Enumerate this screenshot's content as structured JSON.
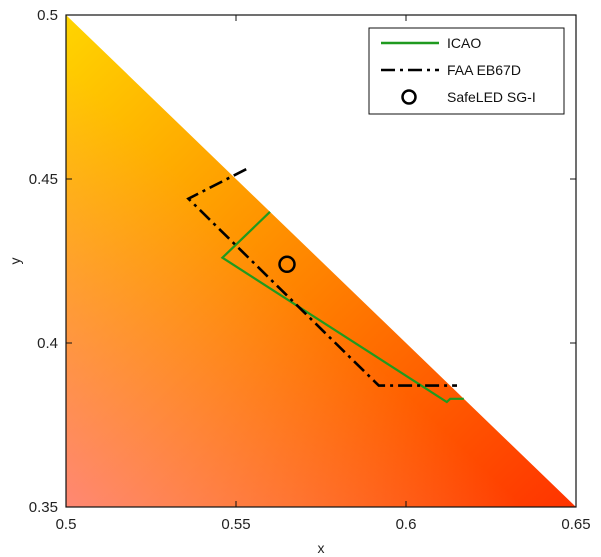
{
  "chart_data": {
    "type": "line",
    "title": "",
    "xlabel": "x",
    "ylabel": "y",
    "xlim": [
      0.5,
      0.65
    ],
    "ylim": [
      0.35,
      0.5
    ],
    "xticks": [
      0.5,
      0.55,
      0.6,
      0.65
    ],
    "yticks": [
      0.35,
      0.4,
      0.45,
      0.5
    ],
    "xtick_labels": [
      "0.5",
      "0.55",
      "0.6",
      "0.65"
    ],
    "ytick_labels": [
      "0.35",
      "0.4",
      "0.45",
      "0.5"
    ],
    "grid": false,
    "legend_position": "top-right",
    "background_region": {
      "description_color_from": "#FFD500",
      "description_color_to": "#FF3300",
      "vertices": [
        [
          0.5,
          0.5
        ],
        [
          0.65,
          0.35
        ],
        [
          0.5,
          0.35
        ]
      ]
    },
    "series": [
      {
        "name": "ICAO",
        "style": "solid",
        "color": "#1F9A1F",
        "x": [
          0.56,
          0.548,
          0.546,
          0.612,
          0.613,
          0.617
        ],
        "y": [
          0.44,
          0.428,
          0.426,
          0.382,
          0.383,
          0.383
        ]
      },
      {
        "name": "FAA EB67D",
        "style": "dashdot",
        "color": "#000000",
        "x": [
          0.553,
          0.536,
          0.592,
          0.615
        ],
        "y": [
          0.453,
          0.444,
          0.387,
          0.387
        ]
      },
      {
        "name": "SafeLED SG-I",
        "style": "marker-circle",
        "color": "#000000",
        "x": [
          0.565
        ],
        "y": [
          0.424
        ]
      }
    ]
  }
}
